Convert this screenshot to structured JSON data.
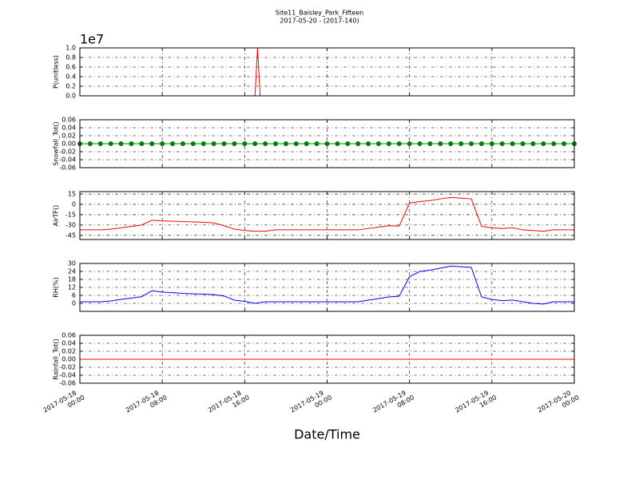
{
  "chart_data": [
    {
      "type": "line",
      "title": "Site11_Baisley_Park_Fifteen",
      "subtitle": "2017-05-20 - (2017-140)",
      "ylabel": "P(unitless)",
      "offset_text": "1e7",
      "x": [
        "2017-05-18 00:00",
        "2017-05-18 17:00",
        "2017-05-18 17:15",
        "2017-05-18 17:30",
        "2017-05-20 00:00"
      ],
      "series": [
        {
          "color": "#ff0000",
          "values": [
            0,
            0,
            10000000,
            0,
            0
          ]
        }
      ],
      "ylim": [
        0,
        10000000
      ],
      "yticks": [
        {
          "value": 0,
          "label": "0.0"
        },
        {
          "value": 2000000,
          "label": "0.2"
        },
        {
          "value": 4000000,
          "label": "0.4"
        },
        {
          "value": 6000000,
          "label": "0.6"
        },
        {
          "value": 8000000,
          "label": "0.8"
        },
        {
          "value": 10000000,
          "label": "1.0"
        }
      ],
      "xlim": [
        "2017-05-18 00:00",
        "2017-05-20 00:00"
      ],
      "xticks": [
        "2017-05-18 00:00",
        "2017-05-18 08:00",
        "2017-05-18 16:00",
        "2017-05-19 00:00",
        "2017-05-19 08:00",
        "2017-05-19 16:00",
        "2017-05-20 00:00"
      ],
      "grid": true
    },
    {
      "type": "line",
      "ylabel": "Snowfall_Tot()",
      "marker": "o",
      "x": [
        "2017-05-18 00:00",
        "2017-05-18 01:00",
        "2017-05-18 02:00",
        "2017-05-18 03:00",
        "2017-05-18 04:00",
        "2017-05-18 05:00",
        "2017-05-18 06:00",
        "2017-05-18 07:00",
        "2017-05-18 08:00",
        "2017-05-18 09:00",
        "2017-05-18 10:00",
        "2017-05-18 11:00",
        "2017-05-18 12:00",
        "2017-05-18 13:00",
        "2017-05-18 14:00",
        "2017-05-18 15:00",
        "2017-05-18 16:00",
        "2017-05-18 17:00",
        "2017-05-18 18:00",
        "2017-05-18 19:00",
        "2017-05-18 20:00",
        "2017-05-18 21:00",
        "2017-05-18 22:00",
        "2017-05-18 23:00",
        "2017-05-19 00:00",
        "2017-05-19 01:00",
        "2017-05-19 02:00",
        "2017-05-19 03:00",
        "2017-05-19 04:00",
        "2017-05-19 05:00",
        "2017-05-19 06:00",
        "2017-05-19 07:00",
        "2017-05-19 08:00",
        "2017-05-19 09:00",
        "2017-05-19 10:00",
        "2017-05-19 11:00",
        "2017-05-19 12:00",
        "2017-05-19 13:00",
        "2017-05-19 14:00",
        "2017-05-19 15:00",
        "2017-05-19 16:00",
        "2017-05-19 17:00",
        "2017-05-19 18:00",
        "2017-05-19 19:00",
        "2017-05-19 20:00",
        "2017-05-19 21:00",
        "2017-05-19 22:00",
        "2017-05-19 23:00",
        "2017-05-20 00:00"
      ],
      "series": [
        {
          "color": "#008000",
          "values": [
            0,
            0,
            0,
            0,
            0,
            0,
            0,
            0,
            0,
            0,
            0,
            0,
            0,
            0,
            0,
            0,
            0,
            0,
            0,
            0,
            0,
            0,
            0,
            0,
            0,
            0,
            0,
            0,
            0,
            0,
            0,
            0,
            0,
            0,
            0,
            0,
            0,
            0,
            0,
            0,
            0,
            0,
            0,
            0,
            0,
            0,
            0,
            0,
            0
          ]
        }
      ],
      "ylim": [
        -0.06,
        0.06
      ],
      "yticks": [
        {
          "value": -0.06,
          "label": "-0.06"
        },
        {
          "value": -0.04,
          "label": "-0.04"
        },
        {
          "value": -0.02,
          "label": "-0.02"
        },
        {
          "value": 0,
          "label": "0.00"
        },
        {
          "value": 0.02,
          "label": "0.02"
        },
        {
          "value": 0.04,
          "label": "0.04"
        },
        {
          "value": 0.06,
          "label": "0.06"
        }
      ],
      "xlim": [
        "2017-05-18 00:00",
        "2017-05-20 00:00"
      ],
      "xticks": [
        "2017-05-18 00:00",
        "2017-05-18 08:00",
        "2017-05-18 16:00",
        "2017-05-19 00:00",
        "2017-05-19 08:00",
        "2017-05-19 16:00",
        "2017-05-20 00:00"
      ],
      "grid": true
    },
    {
      "type": "line",
      "ylabel": "AirTF()",
      "x": [
        "2017-05-18 00:00",
        "2017-05-18 01:00",
        "2017-05-18 02:00",
        "2017-05-18 03:00",
        "2017-05-18 04:00",
        "2017-05-18 05:00",
        "2017-05-18 06:00",
        "2017-05-18 07:00",
        "2017-05-18 08:00",
        "2017-05-18 09:00",
        "2017-05-18 10:00",
        "2017-05-18 11:00",
        "2017-05-18 12:00",
        "2017-05-18 13:00",
        "2017-05-18 14:00",
        "2017-05-18 15:00",
        "2017-05-18 16:00",
        "2017-05-18 17:00",
        "2017-05-18 18:00",
        "2017-05-18 19:00",
        "2017-05-18 20:00",
        "2017-05-18 21:00",
        "2017-05-18 22:00",
        "2017-05-18 23:00",
        "2017-05-19 00:00",
        "2017-05-19 01:00",
        "2017-05-19 02:00",
        "2017-05-19 03:00",
        "2017-05-19 04:00",
        "2017-05-19 05:00",
        "2017-05-19 06:00",
        "2017-05-19 07:00",
        "2017-05-19 08:00",
        "2017-05-19 09:00",
        "2017-05-19 10:00",
        "2017-05-19 11:00",
        "2017-05-19 12:00",
        "2017-05-19 13:00",
        "2017-05-19 14:00",
        "2017-05-19 15:00",
        "2017-05-19 16:00",
        "2017-05-19 17:00",
        "2017-05-19 18:00",
        "2017-05-19 19:00",
        "2017-05-19 20:00",
        "2017-05-19 21:00",
        "2017-05-19 22:00",
        "2017-05-19 23:00",
        "2017-05-20 00:00"
      ],
      "series": [
        {
          "color": "#ff0000",
          "values": [
            -37,
            -37,
            -37,
            -36,
            -34,
            -32,
            -30,
            -23,
            -24,
            -24.5,
            -25,
            -25.5,
            -26,
            -27,
            -31,
            -36,
            -38,
            -39,
            -39,
            -37,
            -37,
            -37,
            -37,
            -37,
            -37,
            -37,
            -37,
            -37,
            -35,
            -33,
            -31,
            -31.5,
            2,
            4,
            5.5,
            8,
            10,
            9,
            8,
            -32,
            -34,
            -35,
            -34,
            -37,
            -38,
            -39,
            -37,
            -37,
            -37
          ]
        }
      ],
      "ylim": [
        -51,
        18.5
      ],
      "yticks": [
        -45,
        -30,
        -15,
        0,
        15
      ],
      "xlim": [
        "2017-05-18 00:00",
        "2017-05-20 00:00"
      ],
      "xticks": [
        "2017-05-18 00:00",
        "2017-05-18 08:00",
        "2017-05-18 16:00",
        "2017-05-19 00:00",
        "2017-05-19 08:00",
        "2017-05-19 16:00",
        "2017-05-20 00:00"
      ],
      "grid": true
    },
    {
      "type": "line",
      "ylabel": "RH(%)",
      "x": [
        "2017-05-18 00:00",
        "2017-05-18 01:00",
        "2017-05-18 02:00",
        "2017-05-18 03:00",
        "2017-05-18 04:00",
        "2017-05-18 05:00",
        "2017-05-18 06:00",
        "2017-05-18 07:00",
        "2017-05-18 08:00",
        "2017-05-18 09:00",
        "2017-05-18 10:00",
        "2017-05-18 11:00",
        "2017-05-18 12:00",
        "2017-05-18 13:00",
        "2017-05-18 14:00",
        "2017-05-18 15:00",
        "2017-05-18 16:00",
        "2017-05-18 17:00",
        "2017-05-18 18:00",
        "2017-05-18 19:00",
        "2017-05-18 20:00",
        "2017-05-18 21:00",
        "2017-05-18 22:00",
        "2017-05-18 23:00",
        "2017-05-19 00:00",
        "2017-05-19 01:00",
        "2017-05-19 02:00",
        "2017-05-19 03:00",
        "2017-05-19 04:00",
        "2017-05-19 05:00",
        "2017-05-19 06:00",
        "2017-05-19 07:00",
        "2017-05-19 08:00",
        "2017-05-19 09:00",
        "2017-05-19 10:00",
        "2017-05-19 11:00",
        "2017-05-19 12:00",
        "2017-05-19 13:00",
        "2017-05-19 14:00",
        "2017-05-19 15:00",
        "2017-05-19 16:00",
        "2017-05-19 17:00",
        "2017-05-19 18:00",
        "2017-05-19 19:00",
        "2017-05-19 20:00",
        "2017-05-19 21:00",
        "2017-05-19 22:00",
        "2017-05-19 23:00",
        "2017-05-20 00:00"
      ],
      "series": [
        {
          "color": "#0000ff",
          "values": [
            1.2,
            1.2,
            1.2,
            1.8,
            3,
            4,
            5,
            9.5,
            8.5,
            8,
            7.5,
            7.2,
            7,
            6.6,
            5.5,
            2.4,
            1.5,
            0,
            1.2,
            1.2,
            1.2,
            1.2,
            1.2,
            1.2,
            1.2,
            1.2,
            1.2,
            1.2,
            2.4,
            3.6,
            4.8,
            5.4,
            20,
            24,
            25,
            26.5,
            28,
            27.5,
            27,
            4.8,
            3,
            2,
            2.5,
            1.2,
            0,
            -0.5,
            1.2,
            1.2,
            1.2
          ]
        }
      ],
      "ylim": [
        -6,
        30
      ],
      "yticks": [
        0,
        6,
        12,
        18,
        24,
        30
      ],
      "xlim": [
        "2017-05-18 00:00",
        "2017-05-20 00:00"
      ],
      "xticks": [
        "2017-05-18 00:00",
        "2017-05-18 08:00",
        "2017-05-18 16:00",
        "2017-05-19 00:00",
        "2017-05-19 08:00",
        "2017-05-19 16:00",
        "2017-05-20 00:00"
      ],
      "grid": true
    },
    {
      "type": "line",
      "ylabel": "Rainfall_Tot()",
      "xlabel": "Date/Time",
      "x": [
        "2017-05-18 00:00",
        "2017-05-20 00:00"
      ],
      "series": [
        {
          "color": "#ff0000",
          "values": [
            0,
            0
          ]
        }
      ],
      "ylim": [
        -0.06,
        0.06
      ],
      "yticks": [
        {
          "value": -0.06,
          "label": "-0.06"
        },
        {
          "value": -0.04,
          "label": "-0.04"
        },
        {
          "value": -0.02,
          "label": "-0.02"
        },
        {
          "value": 0,
          "label": "0.00"
        },
        {
          "value": 0.02,
          "label": "0.02"
        },
        {
          "value": 0.04,
          "label": "0.04"
        },
        {
          "value": 0.06,
          "label": "0.06"
        }
      ],
      "xlim": [
        "2017-05-18 00:00",
        "2017-05-20 00:00"
      ],
      "xticks": [
        "2017-05-18 00:00",
        "2017-05-18 08:00",
        "2017-05-18 16:00",
        "2017-05-19 00:00",
        "2017-05-19 08:00",
        "2017-05-19 16:00",
        "2017-05-20 00:00"
      ],
      "grid": true
    }
  ]
}
